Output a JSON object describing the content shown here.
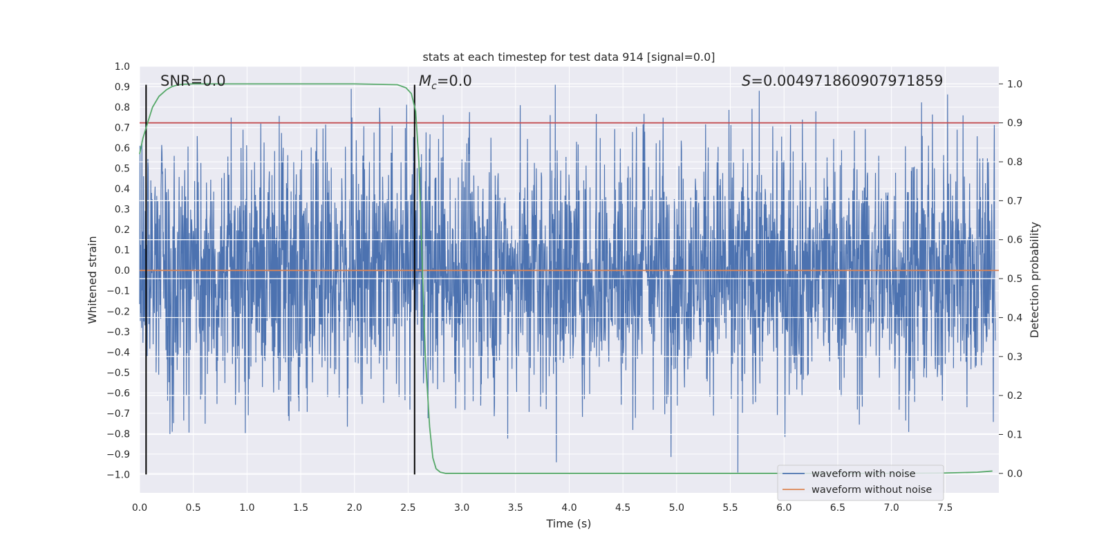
{
  "chart_data": {
    "type": "line",
    "title": "stats at each timestep for test data 914 [signal=0.0]",
    "xlabel": "Time (s)",
    "ylabel_left": "Whitened strain",
    "ylabel_right": "Detection probability",
    "xlim": [
      0.0,
      8.0
    ],
    "ylim_left": [
      -1.09,
      1.0
    ],
    "ylim_right": [
      -0.05,
      1.045
    ],
    "x_ticks": [
      "0.0",
      "0.5",
      "1.0",
      "1.5",
      "2.0",
      "2.5",
      "3.0",
      "3.5",
      "4.0",
      "4.5",
      "5.0",
      "5.5",
      "6.0",
      "6.5",
      "7.0",
      "7.5"
    ],
    "y_left_ticks": [
      "1.0",
      "0.9",
      "0.8",
      "0.7",
      "0.6",
      "0.5",
      "0.4",
      "0.3",
      "0.2",
      "0.1",
      "0.0",
      "−0.1",
      "−0.2",
      "−0.3",
      "−0.4",
      "−0.5",
      "−0.6",
      "−0.7",
      "−0.8",
      "−0.9",
      "−1.0"
    ],
    "y_right_ticks": [
      "1.0",
      "0.9",
      "0.8",
      "0.7",
      "0.6",
      "0.5",
      "0.4",
      "0.3",
      "0.2",
      "0.1",
      "0.0"
    ],
    "grid": true,
    "annotations": {
      "snr": "SNR=0.0",
      "mc_symbol": "M",
      "mc_sub": "c",
      "mc_value": "=0.0",
      "s_symbol": "S",
      "s_value": "=0.004971860907971859"
    },
    "series": [
      {
        "name": "waveform with noise",
        "axis": "left",
        "color": "#4c72b0",
        "note": "noise-dominated strain, envelope approx between -0.7 and 0.7 with peaks to 0.91 and -0.99",
        "peaks_max": [
          0.91,
          0.89
        ],
        "peaks_min": [
          -0.99,
          -0.94
        ]
      },
      {
        "name": "waveform without noise",
        "axis": "left",
        "color": "#dd8452",
        "constant": 0.0
      },
      {
        "name": "detection probability",
        "axis": "right",
        "color": "#55a868",
        "x": [
          0.0,
          0.03,
          0.08,
          0.12,
          0.18,
          0.25,
          0.3,
          0.35,
          0.4,
          0.5,
          1.0,
          1.5,
          2.0,
          2.4,
          2.48,
          2.53,
          2.57,
          2.6,
          2.63,
          2.66,
          2.7,
          2.73,
          2.76,
          2.8,
          2.85,
          3.0,
          4.0,
          5.0,
          6.0,
          7.0,
          7.5,
          7.8,
          7.94
        ],
        "y": [
          0.82,
          0.86,
          0.905,
          0.94,
          0.968,
          0.985,
          0.993,
          0.997,
          0.999,
          1.0,
          1.0,
          1.0,
          1.0,
          0.998,
          0.99,
          0.975,
          0.93,
          0.8,
          0.55,
          0.3,
          0.12,
          0.04,
          0.012,
          0.003,
          0.0,
          0.0,
          0.0,
          0.0,
          0.0,
          0.0,
          0.001,
          0.003,
          0.006
        ]
      }
    ],
    "hlines": [
      {
        "name": "threshold",
        "axis": "right",
        "y": 0.9,
        "color": "#c44e52"
      }
    ],
    "vlines": [
      {
        "name": "marker-1",
        "x": 0.06,
        "color": "#000000",
        "y0": -1.0,
        "y1": 0.91
      },
      {
        "name": "marker-2",
        "x": 2.56,
        "color": "#000000",
        "y0": -1.0,
        "y1": 0.91
      }
    ],
    "legend": {
      "placement": "lower-right",
      "entries": [
        {
          "label": "waveform with noise",
          "color": "#4c72b0"
        },
        {
          "label": "waveform without noise",
          "color": "#dd8452"
        }
      ]
    }
  }
}
